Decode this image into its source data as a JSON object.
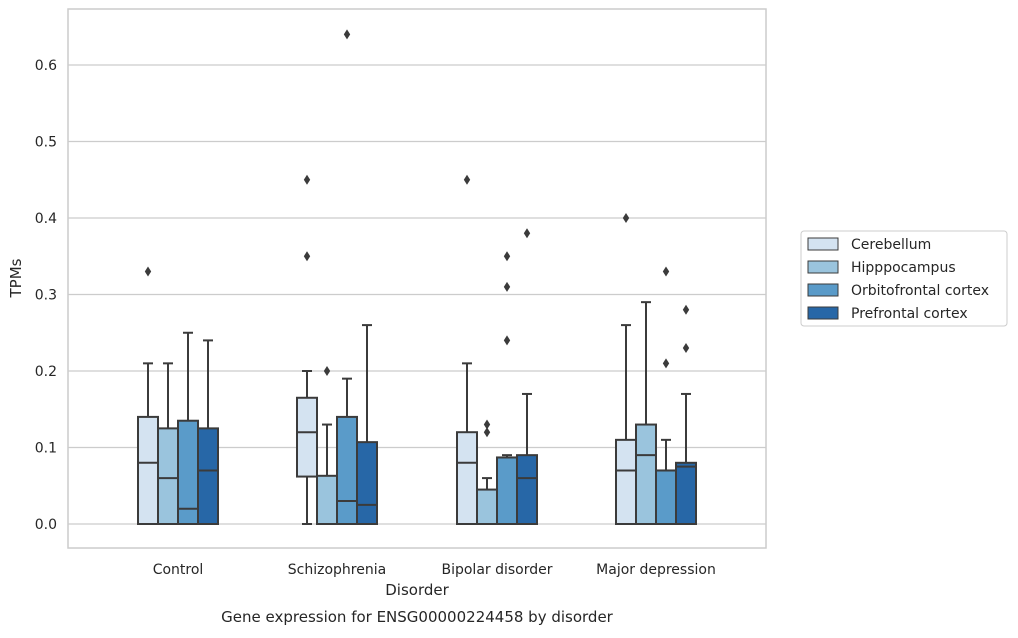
{
  "chart_data": {
    "type": "box",
    "title": "Gene expression for ENSG00000224458 by disorder",
    "xlabel": "Disorder",
    "ylabel": "TPMs",
    "ylim": [
      -0.032,
      0.675
    ],
    "yticks": [
      0.0,
      0.1,
      0.2,
      0.3,
      0.4,
      0.5,
      0.6
    ],
    "ytick_labels": [
      "0.0",
      "0.1",
      "0.2",
      "0.3",
      "0.4",
      "0.5",
      "0.6"
    ],
    "grid": "horizontal",
    "legend_position": "right",
    "categories": [
      "Control",
      "Schizophrenia",
      "Bipolar disorder",
      "Major depression"
    ],
    "series": [
      {
        "name": "Cerebellum",
        "color": "#d4e3f1",
        "boxes": [
          {
            "whislo": 0.0,
            "q1": 0.0,
            "med": 0.08,
            "q3": 0.14,
            "whishi": 0.21,
            "fliers": [
              0.33
            ]
          },
          {
            "whislo": 0.0,
            "q1": 0.062,
            "med": 0.12,
            "q3": 0.165,
            "whishi": 0.2,
            "fliers": [
              0.35,
              0.45
            ]
          },
          {
            "whislo": 0.0,
            "q1": 0.0,
            "med": 0.08,
            "q3": 0.12,
            "whishi": 0.21,
            "fliers": [
              0.45
            ]
          },
          {
            "whislo": 0.0,
            "q1": 0.0,
            "med": 0.07,
            "q3": 0.11,
            "whishi": 0.26,
            "fliers": [
              0.4
            ]
          }
        ]
      },
      {
        "name": "Hipppocampus",
        "color": "#9ac4dd",
        "boxes": [
          {
            "whislo": 0.0,
            "q1": 0.0,
            "med": 0.06,
            "q3": 0.125,
            "whishi": 0.21,
            "fliers": []
          },
          {
            "whislo": 0.0,
            "q1": 0.0,
            "med": 0.0,
            "q3": 0.063,
            "whishi": 0.13,
            "fliers": [
              0.2
            ]
          },
          {
            "whislo": 0.0,
            "q1": 0.0,
            "med": 0.0,
            "q3": 0.045,
            "whishi": 0.06,
            "fliers": [
              0.12,
              0.13
            ]
          },
          {
            "whislo": 0.0,
            "q1": 0.0,
            "med": 0.09,
            "q3": 0.13,
            "whishi": 0.29,
            "fliers": []
          }
        ]
      },
      {
        "name": "Orbitofrontal cortex",
        "color": "#5a9bc9",
        "boxes": [
          {
            "whislo": 0.0,
            "q1": 0.0,
            "med": 0.02,
            "q3": 0.135,
            "whishi": 0.25,
            "fliers": []
          },
          {
            "whislo": 0.0,
            "q1": 0.0,
            "med": 0.03,
            "q3": 0.14,
            "whishi": 0.19,
            "fliers": [
              0.64
            ]
          },
          {
            "whislo": 0.0,
            "q1": 0.0,
            "med": 0.087,
            "q3": 0.087,
            "whishi": 0.09,
            "fliers": [
              0.24,
              0.31,
              0.35
            ]
          },
          {
            "whislo": 0.0,
            "q1": 0.0,
            "med": 0.07,
            "q3": 0.07,
            "whishi": 0.11,
            "fliers": [
              0.21,
              0.33
            ]
          }
        ]
      },
      {
        "name": "Prefrontal cortex",
        "color": "#2767a7",
        "boxes": [
          {
            "whislo": 0.0,
            "q1": 0.0,
            "med": 0.07,
            "q3": 0.125,
            "whishi": 0.24,
            "fliers": []
          },
          {
            "whislo": 0.0,
            "q1": 0.0,
            "med": 0.025,
            "q3": 0.107,
            "whishi": 0.26,
            "fliers": []
          },
          {
            "whislo": 0.0,
            "q1": 0.0,
            "med": 0.06,
            "q3": 0.09,
            "whishi": 0.17,
            "fliers": [
              0.38
            ]
          },
          {
            "whislo": 0.0,
            "q1": 0.0,
            "med": 0.075,
            "q3": 0.08,
            "whishi": 0.17,
            "fliers": [
              0.23,
              0.28
            ]
          }
        ]
      }
    ]
  }
}
